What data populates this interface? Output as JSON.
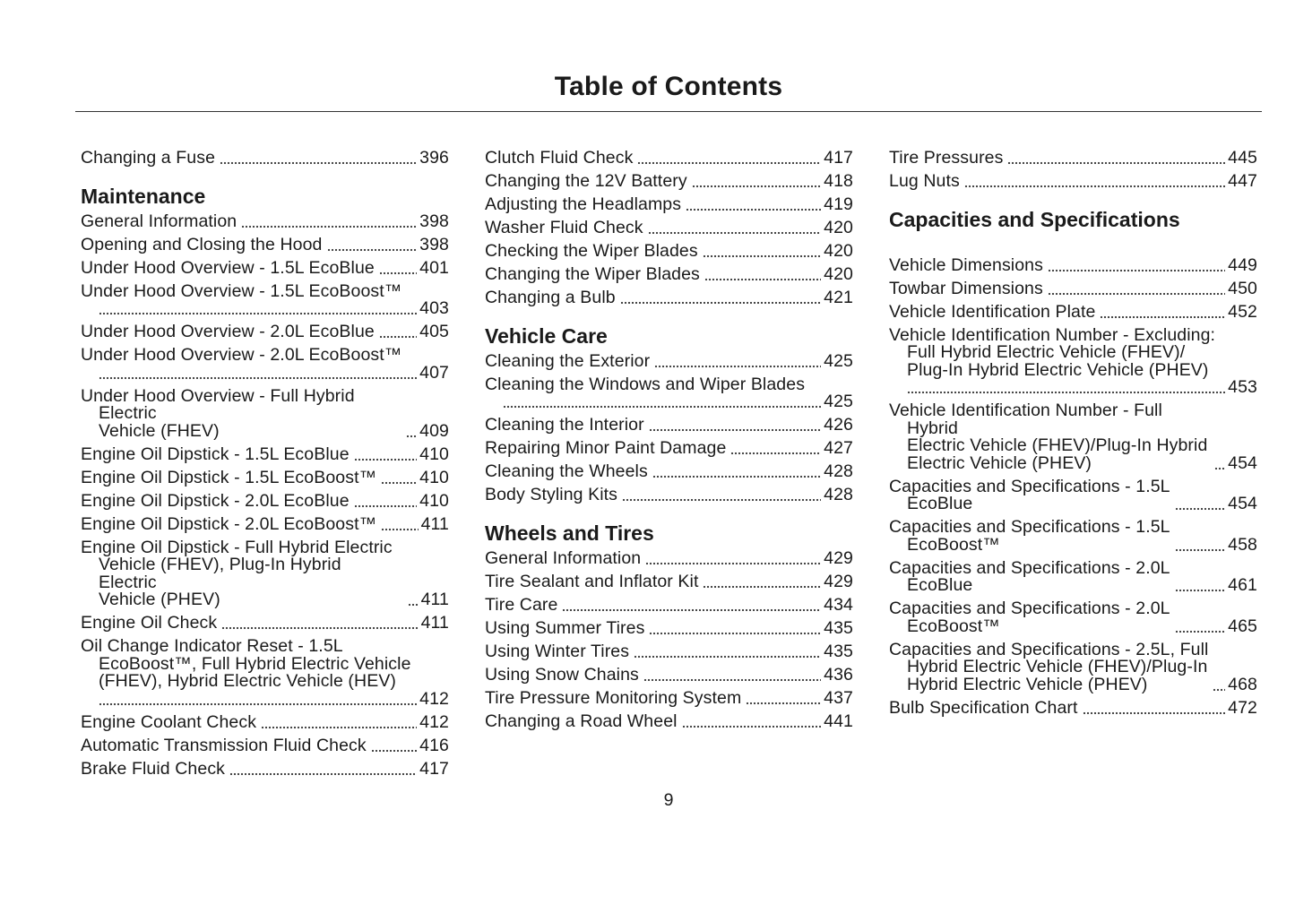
{
  "title": "Table of Contents",
  "page_number": "9",
  "columns": [
    {
      "sections": [
        {
          "heading": "",
          "entries": [
            {
              "title": "Changing a Fuse",
              "page": "396"
            }
          ]
        },
        {
          "heading": "Maintenance",
          "entries": [
            {
              "title": "General Information",
              "page": "398"
            },
            {
              "title": "Opening and Closing the Hood",
              "page": "398"
            },
            {
              "title": "Under Hood Overview - 1.5L EcoBlue",
              "page": "401"
            },
            {
              "title": "Under Hood Overview - 1.5L EcoBoost™",
              "page": "403",
              "own_line": true
            },
            {
              "title": "Under Hood Overview - 2.0L EcoBlue",
              "page": "405"
            },
            {
              "title": "Under Hood Overview - 2.0L EcoBoost™",
              "page": "407",
              "own_line": true
            },
            {
              "title": "Under Hood Overview - Full Hybrid Electric\nVehicle (FHEV)",
              "page": "409"
            },
            {
              "title": "Engine Oil Dipstick - 1.5L EcoBlue",
              "page": "410"
            },
            {
              "title": "Engine Oil Dipstick - 1.5L EcoBoost™",
              "page": "410"
            },
            {
              "title": "Engine Oil Dipstick - 2.0L EcoBlue",
              "page": "410"
            },
            {
              "title": "Engine Oil Dipstick - 2.0L EcoBoost™",
              "page": "411"
            },
            {
              "title": "Engine Oil Dipstick - Full Hybrid Electric\nVehicle (FHEV), Plug-In Hybrid Electric\nVehicle (PHEV)",
              "page": "411"
            },
            {
              "title": "Engine Oil Check",
              "page": "411"
            },
            {
              "title": "Oil Change Indicator Reset - 1.5L\nEcoBoost™, Full Hybrid Electric Vehicle\n(FHEV), Hybrid Electric Vehicle (HEV)",
              "page": "412",
              "own_line": true
            },
            {
              "title": "Engine Coolant Check",
              "page": "412"
            },
            {
              "title": "Automatic Transmission Fluid Check",
              "page": "416"
            },
            {
              "title": "Brake Fluid Check",
              "page": "417"
            }
          ]
        }
      ]
    },
    {
      "sections": [
        {
          "heading": "",
          "entries": [
            {
              "title": "Clutch Fluid Check",
              "page": "417"
            },
            {
              "title": "Changing the 12V Battery",
              "page": "418"
            },
            {
              "title": "Adjusting the Headlamps",
              "page": "419"
            },
            {
              "title": "Washer Fluid Check",
              "page": "420"
            },
            {
              "title": "Checking the Wiper Blades",
              "page": "420"
            },
            {
              "title": "Changing the Wiper Blades",
              "page": "420"
            },
            {
              "title": "Changing a Bulb",
              "page": "421"
            }
          ]
        },
        {
          "heading": "Vehicle Care",
          "entries": [
            {
              "title": "Cleaning the Exterior",
              "page": "425"
            },
            {
              "title": "Cleaning the Windows and Wiper Blades",
              "page": "425",
              "own_line": true
            },
            {
              "title": "Cleaning the Interior",
              "page": "426"
            },
            {
              "title": "Repairing Minor Paint Damage",
              "page": "427"
            },
            {
              "title": "Cleaning the Wheels",
              "page": "428"
            },
            {
              "title": "Body Styling Kits",
              "page": "428"
            }
          ]
        },
        {
          "heading": "Wheels and Tires",
          "entries": [
            {
              "title": "General Information",
              "page": "429"
            },
            {
              "title": "Tire Sealant and Inflator Kit",
              "page": "429"
            },
            {
              "title": "Tire Care",
              "page": "434"
            },
            {
              "title": "Using Summer Tires",
              "page": "435"
            },
            {
              "title": "Using Winter Tires",
              "page": "435"
            },
            {
              "title": "Using Snow Chains",
              "page": "436"
            },
            {
              "title": "Tire Pressure Monitoring System",
              "page": "437"
            },
            {
              "title": "Changing a Road Wheel",
              "page": "441"
            }
          ]
        }
      ]
    },
    {
      "sections": [
        {
          "heading": "",
          "entries": [
            {
              "title": "Tire Pressures",
              "page": "445"
            },
            {
              "title": "Lug Nuts",
              "page": "447"
            }
          ]
        },
        {
          "heading": "Capacities and Specifications",
          "entries": [
            {
              "title": "Vehicle Dimensions",
              "page": "449"
            },
            {
              "title": "Towbar Dimensions",
              "page": "450"
            },
            {
              "title": "Vehicle Identification Plate",
              "page": "452"
            },
            {
              "title": "Vehicle Identification Number - Excluding:\nFull Hybrid Electric Vehicle (FHEV)/\nPlug-In Hybrid Electric Vehicle (PHEV)",
              "page": "453",
              "own_line": true
            },
            {
              "title": "Vehicle Identification Number - Full Hybrid\nElectric Vehicle (FHEV)/Plug-In Hybrid\nElectric Vehicle (PHEV)",
              "page": "454"
            },
            {
              "title": "Capacities and Specifications - 1.5L\nEcoBlue",
              "page": "454"
            },
            {
              "title": "Capacities and Specifications - 1.5L\nEcoBoost™",
              "page": "458"
            },
            {
              "title": "Capacities and Specifications - 2.0L\nEcoBlue",
              "page": "461"
            },
            {
              "title": "Capacities and Specifications - 2.0L\nEcoBoost™",
              "page": "465"
            },
            {
              "title": "Capacities and Specifications - 2.5L, Full\nHybrid Electric Vehicle (FHEV)/Plug-In\nHybrid Electric Vehicle (PHEV)",
              "page": "468"
            },
            {
              "title": "Bulb Specification Chart",
              "page": "472"
            }
          ]
        }
      ]
    }
  ]
}
